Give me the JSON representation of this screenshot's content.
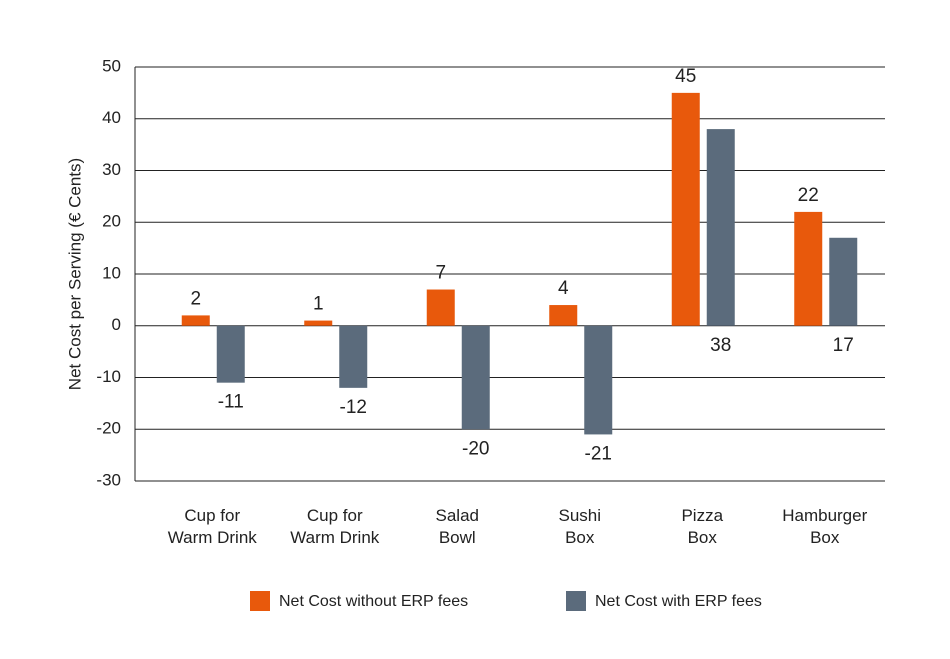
{
  "chart_data": {
    "type": "bar",
    "y_label": "Net Cost per Serving (€ Cents)",
    "categories": [
      "Cup for\nWarm Drink",
      "Cup for\nWarm Drink",
      "Salad\nBowl",
      "Sushi\nBox",
      "Pizza\nBox",
      "Hamburger\nBox"
    ],
    "series": [
      {
        "name": "Net Cost without ERP fees",
        "color": "#e8590c",
        "values": [
          2,
          1,
          7,
          4,
          45,
          22
        ]
      },
      {
        "name": "Net Cost with ERP fees",
        "color": "#5b6b7c",
        "values": [
          -11,
          -12,
          -20,
          -21,
          38,
          17
        ]
      }
    ],
    "ylim": [
      -30,
      50
    ],
    "yticks": [
      -30,
      -20,
      -10,
      0,
      10,
      20,
      30,
      40,
      50
    ],
    "grid": true
  }
}
